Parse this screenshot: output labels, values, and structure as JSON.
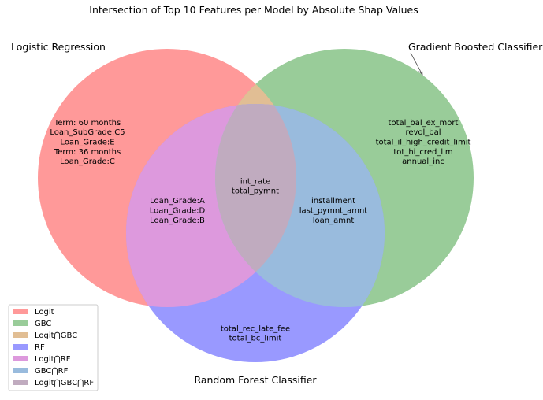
{
  "title": "Intersection of Top 10 Features per Model by Absolute Shap Values",
  "set_labels": {
    "logit": "Logistic Regression",
    "gbc": "Gradient Boosted Classifier",
    "rf": "Random Forest Classifier"
  },
  "colors": {
    "logit": "#ff9999",
    "gbc": "#99cc99",
    "logit_gbc": "#e1be94",
    "rf": "#9999ff",
    "logit_rf": "#dd99dd",
    "gbc_rf": "#99bbdd",
    "logit_gbc_rf": "#c0abbf"
  },
  "regions": {
    "logit_only": [
      "Term: 60 months",
      "Loan_SubGrade:C5",
      "Loan_Grade:E",
      "Term: 36 months",
      "Loan_Grade:C"
    ],
    "gbc_only": [
      "total_bal_ex_mort",
      "revol_bal",
      "total_il_high_credit_limit",
      "tot_hi_cred_lim",
      "annual_inc"
    ],
    "rf_only": [
      "total_rec_late_fee",
      "total_bc_limit"
    ],
    "logit_gbc": [],
    "logit_rf": [
      "Loan_Grade:A",
      "Loan_Grade:D",
      "Loan_Grade:B"
    ],
    "gbc_rf": [
      "installment",
      "last_pymnt_amnt",
      "loan_amnt"
    ],
    "logit_gbc_rf": [
      "int_rate",
      "total_pymnt"
    ]
  },
  "legend": [
    {
      "label": "Logit",
      "color": "#ff9999"
    },
    {
      "label": "GBC",
      "color": "#99cc99"
    },
    {
      "label": "Logit⋂GBC",
      "color": "#e1be94"
    },
    {
      "label": "RF",
      "color": "#9999ff"
    },
    {
      "label": "Logit⋂RF",
      "color": "#dd99dd"
    },
    {
      "label": "GBC⋂RF",
      "color": "#99bbdd"
    },
    {
      "label": "Logit⋂GBC⋂RF",
      "color": "#c0abbf"
    }
  ]
}
